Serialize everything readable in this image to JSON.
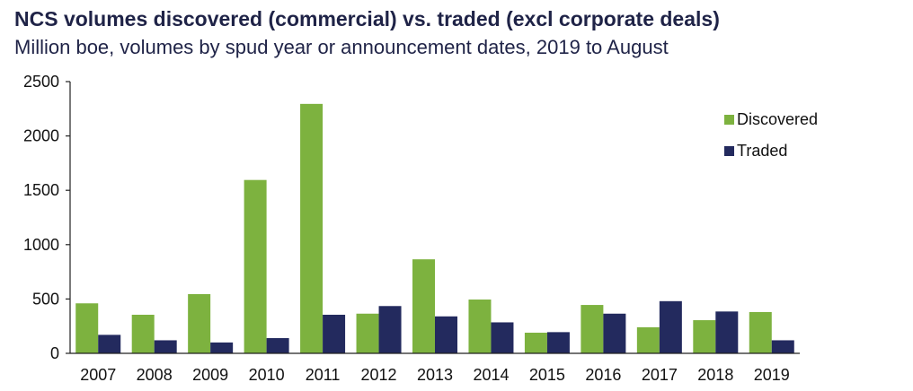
{
  "chart_data": {
    "type": "bar",
    "title": "NCS volumes discovered (commercial) vs. traded (excl corporate deals)",
    "subtitle": "Million boe, volumes by spud year or announcement dates, 2019 to August",
    "xlabel": "",
    "ylabel": "",
    "categories": [
      "2007",
      "2008",
      "2009",
      "2010",
      "2011",
      "2012",
      "2013",
      "2014",
      "2015",
      "2016",
      "2017",
      "2018",
      "2019"
    ],
    "series": [
      {
        "name": "Discovered",
        "color": "#7db23f",
        "values": [
          460,
          355,
          545,
          1595,
          2295,
          365,
          865,
          495,
          190,
          445,
          240,
          305,
          380
        ]
      },
      {
        "name": "Traded",
        "color": "#232a5e",
        "values": [
          170,
          120,
          100,
          140,
          355,
          435,
          340,
          285,
          195,
          365,
          480,
          385,
          120
        ]
      }
    ],
    "yticks": [
      0,
      500,
      1000,
      1500,
      2000,
      2500
    ],
    "ytick_labels": [
      "0",
      "500",
      "1000",
      "1500",
      "2000",
      "2500"
    ],
    "ylim": [
      0,
      2500
    ],
    "grid": false,
    "legend_position": "top-right"
  }
}
